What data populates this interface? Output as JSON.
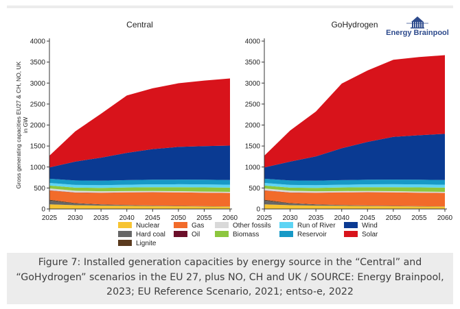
{
  "caption": "Figure 7: Installed generation capacities by energy source in the “Central” and “GoHydrogen” scenarios in the EU 27, plus NO, CH and UK / SOURCE: Energy Brainpool, 2023; EU Reference Scenario, 2021; entso-e, 2022",
  "logo": {
    "text": "Energy Brainpool",
    "color": "#2d4a8c",
    "icon": "building-columns-logo"
  },
  "chart_data": [
    {
      "type": "area",
      "stacked": true,
      "title": "Central",
      "ylabel": "Gross generating capacities EU27 & CH, NO, UK in GW",
      "xlabel": "",
      "x": [
        2025,
        2030,
        2035,
        2040,
        2045,
        2050,
        2055,
        2060
      ],
      "xticks": [
        "2025",
        "2030",
        "2035",
        "2040",
        "2045",
        "2050",
        "2055",
        "2060"
      ],
      "ylim": [
        0,
        4000
      ],
      "yticks": [
        "0",
        "500",
        "1000",
        "1500",
        "2000",
        "2500",
        "3000",
        "3500",
        "4000"
      ],
      "grid": false,
      "series": [
        {
          "name": "Nuclear",
          "color": "#f7c432",
          "values": [
            110,
            90,
            80,
            75,
            70,
            65,
            60,
            55
          ]
        },
        {
          "name": "Hard coal",
          "color": "#666666",
          "values": [
            90,
            40,
            25,
            15,
            10,
            8,
            6,
            5
          ]
        },
        {
          "name": "Lignite",
          "color": "#5a3a1e",
          "values": [
            20,
            10,
            5,
            3,
            2,
            2,
            1,
            1
          ]
        },
        {
          "name": "Gas",
          "color": "#f26b2a",
          "values": [
            220,
            250,
            275,
            300,
            315,
            320,
            320,
            320
          ]
        },
        {
          "name": "Oil",
          "color": "#6b0f2a",
          "values": [
            5,
            4,
            3,
            2,
            2,
            1,
            1,
            1
          ]
        },
        {
          "name": "Other fossils",
          "color": "#d9d9d9",
          "values": [
            45,
            40,
            35,
            32,
            30,
            28,
            27,
            26
          ]
        },
        {
          "name": "Biomass",
          "color": "#8cc63e",
          "values": [
            70,
            75,
            80,
            85,
            90,
            95,
            100,
            100
          ]
        },
        {
          "name": "Run of River",
          "color": "#5dd4f4",
          "values": [
            60,
            65,
            65,
            65,
            68,
            70,
            70,
            70
          ]
        },
        {
          "name": "Reservoir",
          "color": "#1799c6",
          "values": [
            100,
            105,
            105,
            110,
            110,
            110,
            112,
            112
          ]
        },
        {
          "name": "Wind",
          "color": "#0a3a92",
          "values": [
            270,
            450,
            550,
            650,
            730,
            780,
            800,
            820
          ]
        },
        {
          "name": "Solar",
          "color": "#d8131b",
          "values": [
            280,
            721,
            1047,
            1368,
            1448,
            1516,
            1563,
            1600
          ]
        }
      ]
    },
    {
      "type": "area",
      "stacked": true,
      "title": "GoHydrogen",
      "ylabel": "",
      "xlabel": "",
      "x": [
        2025,
        2030,
        2035,
        2040,
        2045,
        2050,
        2055,
        2060
      ],
      "xticks": [
        "2025",
        "2030",
        "2035",
        "2040",
        "2045",
        "2050",
        "2055",
        "2060"
      ],
      "ylim": [
        0,
        4000
      ],
      "yticks": [
        "0",
        "500",
        "1000",
        "1500",
        "2000",
        "2500",
        "3000",
        "3500",
        "4000"
      ],
      "grid": false,
      "series": [
        {
          "name": "Nuclear",
          "color": "#f7c432",
          "values": [
            110,
            90,
            80,
            75,
            70,
            65,
            60,
            55
          ]
        },
        {
          "name": "Hard coal",
          "color": "#666666",
          "values": [
            90,
            40,
            25,
            15,
            10,
            8,
            6,
            5
          ]
        },
        {
          "name": "Lignite",
          "color": "#5a3a1e",
          "values": [
            20,
            10,
            5,
            3,
            2,
            2,
            1,
            1
          ]
        },
        {
          "name": "Gas",
          "color": "#f26b2a",
          "values": [
            220,
            250,
            275,
            300,
            315,
            320,
            320,
            320
          ]
        },
        {
          "name": "Oil",
          "color": "#6b0f2a",
          "values": [
            5,
            4,
            3,
            2,
            2,
            1,
            1,
            1
          ]
        },
        {
          "name": "Other fossils",
          "color": "#d9d9d9",
          "values": [
            45,
            40,
            35,
            32,
            30,
            28,
            27,
            26
          ]
        },
        {
          "name": "Biomass",
          "color": "#8cc63e",
          "values": [
            70,
            75,
            80,
            85,
            90,
            95,
            100,
            100
          ]
        },
        {
          "name": "Run of River",
          "color": "#5dd4f4",
          "values": [
            60,
            65,
            65,
            65,
            68,
            70,
            70,
            70
          ]
        },
        {
          "name": "Reservoir",
          "color": "#1799c6",
          "values": [
            100,
            105,
            105,
            110,
            110,
            110,
            112,
            112
          ]
        },
        {
          "name": "Wind",
          "color": "#0a3a92",
          "values": [
            270,
            450,
            580,
            760,
            900,
            1020,
            1060,
            1100
          ]
        },
        {
          "name": "Solar",
          "color": "#d8131b",
          "values": [
            280,
            740,
            1070,
            1540,
            1703,
            1837,
            1863,
            1875
          ]
        }
      ]
    }
  ],
  "legend": [
    {
      "name": "Nuclear",
      "color": "#f7c432"
    },
    {
      "name": "Gas",
      "color": "#f26b2a"
    },
    {
      "name": "Other fossils",
      "color": "#d9d9d9"
    },
    {
      "name": "Run of River",
      "color": "#5dd4f4"
    },
    {
      "name": "Wind",
      "color": "#0a3a92"
    },
    {
      "name": "Hard coal",
      "color": "#666666"
    },
    {
      "name": "Oil",
      "color": "#6b0f2a"
    },
    {
      "name": "Biomass",
      "color": "#8cc63e"
    },
    {
      "name": "Reservoir",
      "color": "#1799c6"
    },
    {
      "name": "Solar",
      "color": "#d8131b"
    },
    {
      "name": "Lignite",
      "color": "#5a3a1e"
    }
  ]
}
